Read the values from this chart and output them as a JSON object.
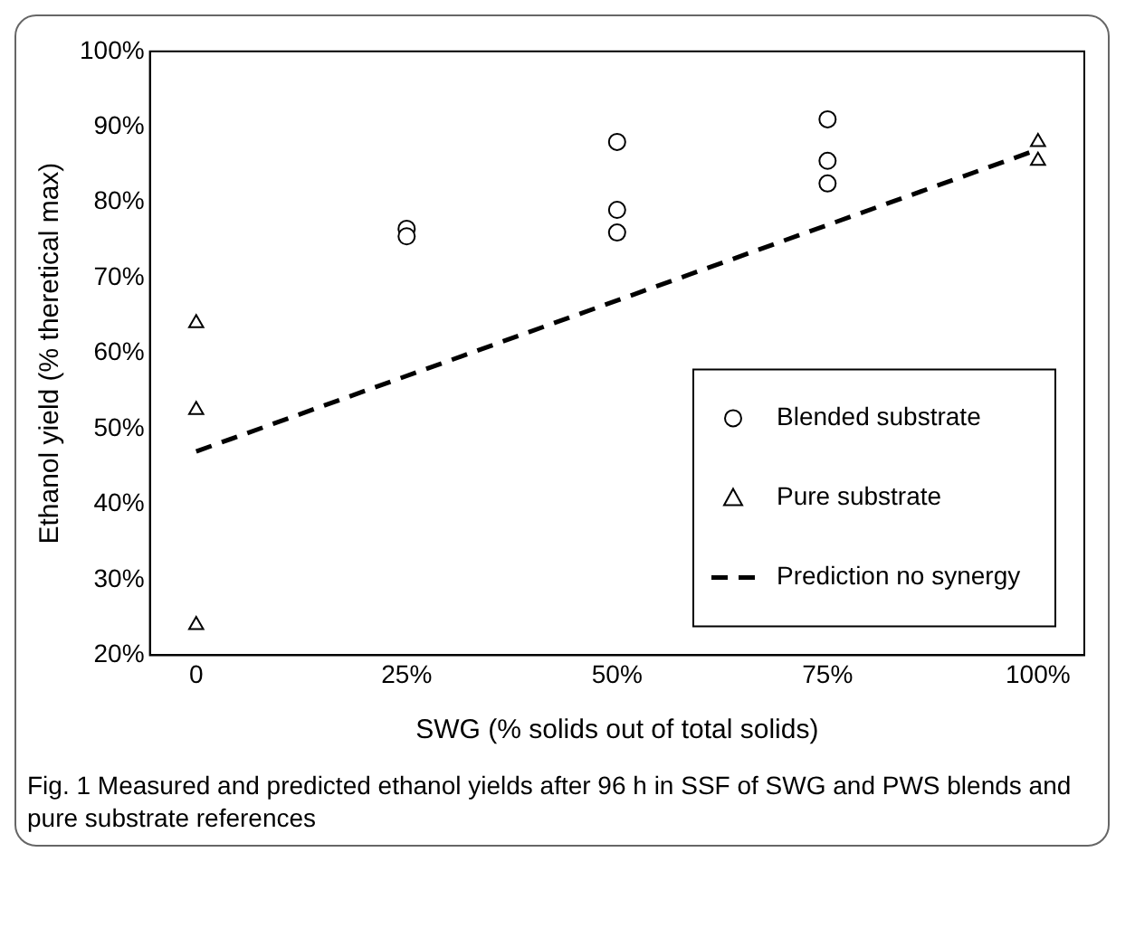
{
  "chart_data": {
    "type": "scatter",
    "xlabel": "SWG (% solids out of total solids)",
    "ylabel": "Ethanol yield (% theretical max)",
    "annotations": [
      "Fig. 1 Measured and predicted ethanol yields after 96 h in SSF of SWG and PWS blends and pure substrate references"
    ],
    "series": [
      {
        "name": "Blended substrate",
        "type": "scatter",
        "marker": "circle",
        "color": "#000000",
        "x": [
          25,
          25,
          50,
          50,
          50,
          75,
          75,
          75
        ],
        "values": [
          76.5,
          75.5,
          88,
          79,
          76,
          91,
          85.5,
          82.5
        ]
      },
      {
        "name": "Pure substrate",
        "type": "scatter",
        "marker": "triangle",
        "color": "#000000",
        "x": [
          0,
          0,
          0,
          100,
          100
        ],
        "values": [
          64,
          52.5,
          24,
          88,
          85.5
        ]
      },
      {
        "name": "Prediction no synergy",
        "type": "line",
        "marker": "none",
        "line_style": "dashed",
        "color": "#000000",
        "x": [
          0,
          100
        ],
        "values": [
          47,
          87
        ]
      }
    ],
    "xlim": [
      -5.5,
      105.5
    ],
    "xticks": [
      0,
      {
        "value": 25,
        "label": "25%"
      },
      {
        "value": 50,
        "label": "50%"
      },
      {
        "value": 75,
        "label": "75%"
      },
      {
        "value": 100,
        "label": "100%"
      }
    ],
    "ylim": [
      20,
      100
    ],
    "yticks": [
      {
        "value": 20,
        "label": "20%"
      },
      {
        "value": 30,
        "label": "30%"
      },
      {
        "value": 40,
        "label": "40%"
      },
      {
        "value": 50,
        "label": "50%"
      },
      {
        "value": 60,
        "label": "60%"
      },
      {
        "value": 70,
        "label": "70%"
      },
      {
        "value": 80,
        "label": "80%"
      },
      {
        "value": 90,
        "label": "90%"
      },
      {
        "value": 100,
        "label": "100%"
      }
    ],
    "grid": false,
    "legend": "bottom right"
  }
}
